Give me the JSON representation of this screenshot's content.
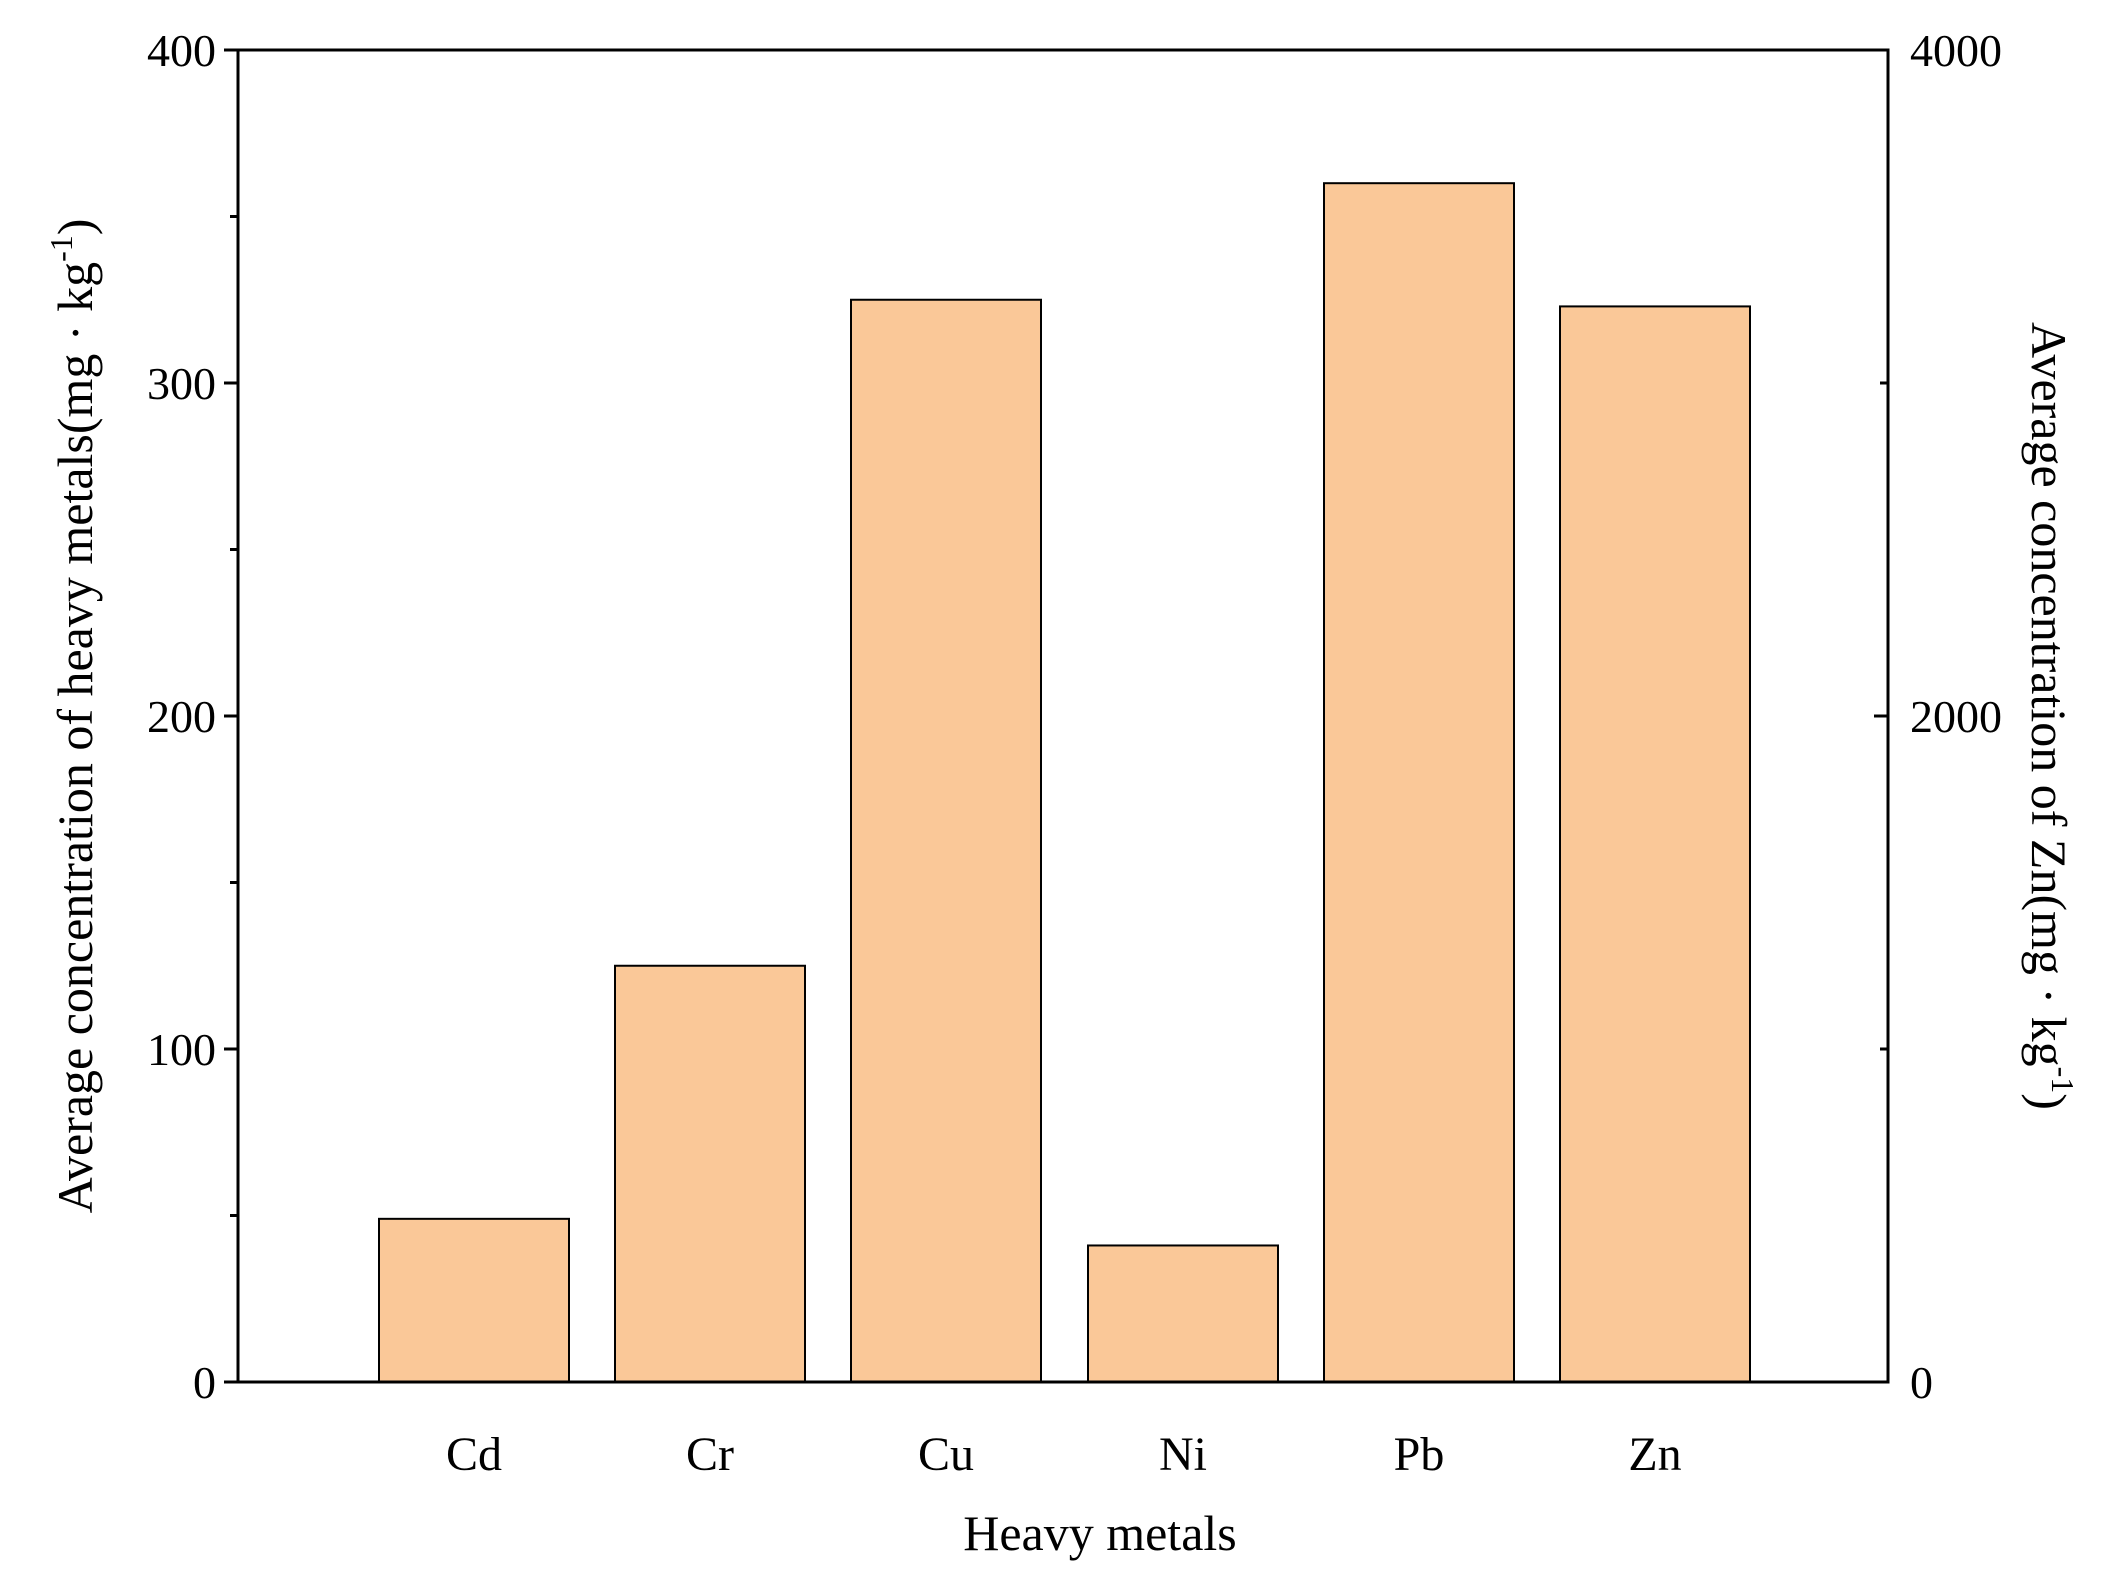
{
  "chart_data": {
    "type": "bar",
    "categories": [
      "Cd",
      "Cr",
      "Cu",
      "Ni",
      "Pb",
      "Zn"
    ],
    "series": [
      {
        "values": [
          49,
          125,
          325,
          41,
          360,
          null
        ],
        "axis": "left"
      },
      {
        "values": [
          null,
          null,
          null,
          null,
          null,
          3230
        ],
        "axis": "right"
      }
    ],
    "xlabel": "Heavy metals",
    "ylabel": {
      "prefix": "Average concentration of heavy metals(mg · kg",
      "sup": "-1",
      "suffix": ")"
    },
    "y2label": {
      "prefix": "Average concentration of Zn(mg · kg",
      "sup": "-1",
      "suffix": ")"
    },
    "ylim": [
      0,
      400
    ],
    "y2lim": [
      0,
      4000
    ],
    "yticks": [
      "0",
      "100",
      "200",
      "300",
      "400"
    ],
    "y2ticks": [
      "0",
      "2000",
      "4000"
    ],
    "grid": false,
    "colors": {
      "bar_fill": "#FAC898",
      "bar_stroke": "#000000",
      "axis": "#000000"
    }
  }
}
